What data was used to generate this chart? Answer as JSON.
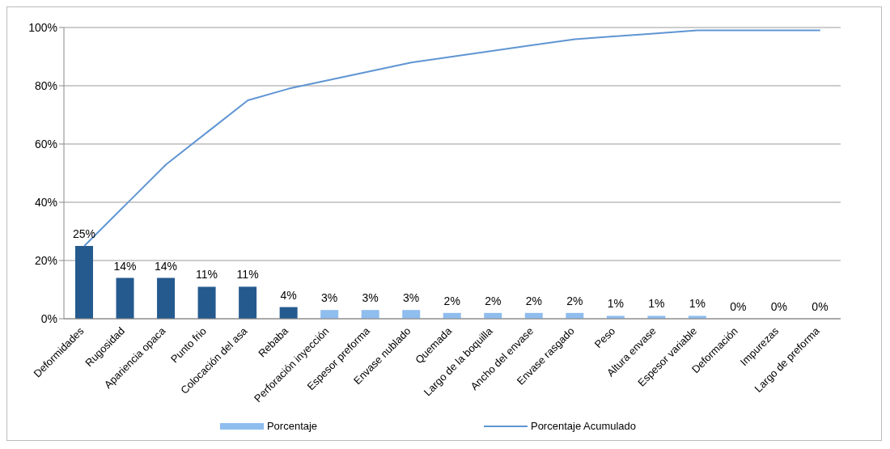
{
  "chart_data": {
    "type": "bar",
    "categories": [
      "Deformidades",
      "Rugosidad",
      "Apariencia opaca",
      "Punto frio",
      "Colocación del asa",
      "Rebaba",
      "Perforación inyección",
      "Espesor preforma",
      "Envase nublado",
      "Quemada",
      "Largo de la boquilla",
      "Ancho del envase",
      "Envase rasgado",
      "Peso",
      "Altura envase",
      "Espesor variable",
      "Deformación",
      "Impurezas",
      "Largo de preforma"
    ],
    "series": [
      {
        "name": "Porcentaje",
        "color": "#8fbdee",
        "colors": [
          "#255a8f",
          "#255a8f",
          "#255a8f",
          "#255a8f",
          "#255a8f",
          "#255a8f",
          "#8fbdee",
          "#8fbdee",
          "#8fbdee",
          "#8fbdee",
          "#8fbdee",
          "#8fbdee",
          "#8fbdee",
          "#8fbdee",
          "#8fbdee",
          "#8fbdee",
          "#8fbdee",
          "#8fbdee",
          "#8fbdee"
        ],
        "values": [
          25,
          14,
          14,
          11,
          11,
          4,
          3,
          3,
          3,
          2,
          2,
          2,
          2,
          1,
          1,
          1,
          0,
          0,
          0
        ],
        "value_labels": [
          "25%",
          "14%",
          "14%",
          "11%",
          "11%",
          "4%",
          "3%",
          "3%",
          "3%",
          "2%",
          "2%",
          "2%",
          "2%",
          "1%",
          "1%",
          "1%",
          "0%",
          "0%",
          "0%"
        ]
      },
      {
        "name": "Porcentaje Acumulado",
        "type": "line",
        "color": "#5f95d3",
        "values": [
          25,
          39,
          53,
          64,
          75,
          79,
          82,
          85,
          88,
          90,
          92,
          94,
          96,
          97,
          98,
          99,
          99,
          99,
          99
        ]
      }
    ],
    "ylim": [
      0,
      100
    ],
    "yticks": [
      {
        "value": 0,
        "label": "0%"
      },
      {
        "value": 20,
        "label": "20%"
      },
      {
        "value": 40,
        "label": "40%"
      },
      {
        "value": 60,
        "label": "60%"
      },
      {
        "value": 80,
        "label": "80%"
      },
      {
        "value": 100,
        "label": "100%"
      }
    ],
    "grid": "y",
    "legend": "bottom",
    "marker": "none"
  }
}
